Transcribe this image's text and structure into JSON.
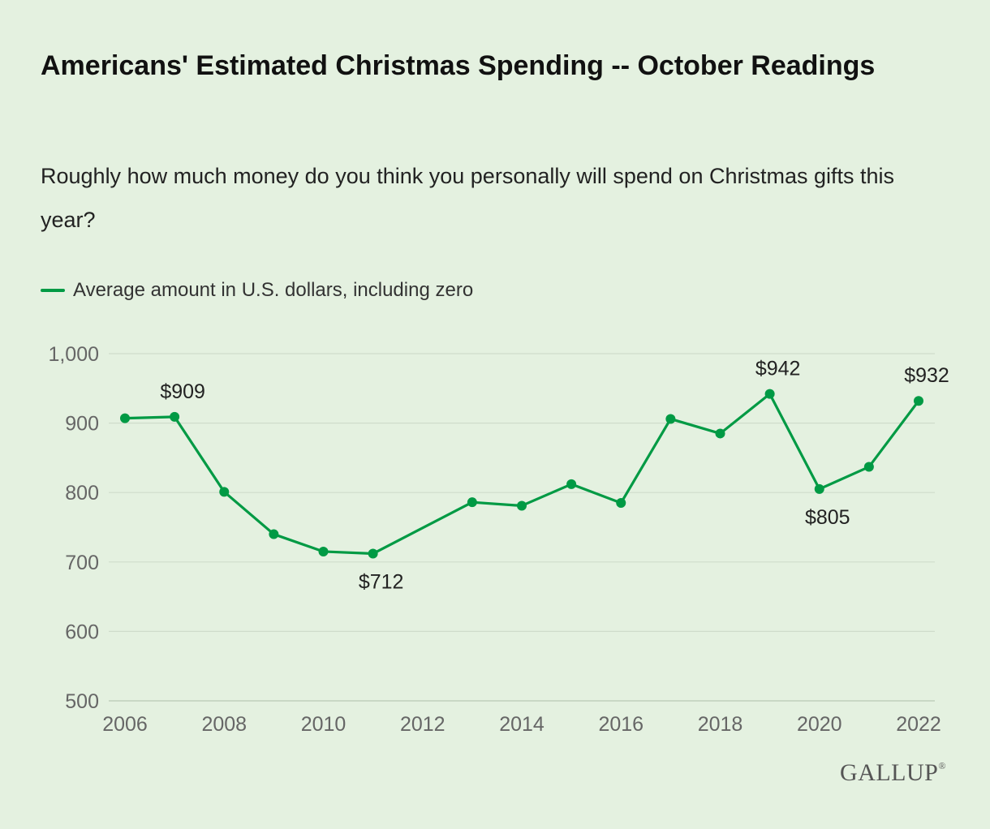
{
  "title": "Americans' Estimated Christmas Spending -- October Readings",
  "subtitle": "Roughly how much money do you think you personally will spend on Christmas gifts this year?",
  "legend": {
    "label": "Average amount in U.S. dollars, including zero"
  },
  "brand": {
    "name": "GALLUP",
    "mark": "®"
  },
  "colors": {
    "background": "#e4f1e0",
    "series": "#009a44",
    "grid": "#cfdccb"
  },
  "chart_data": {
    "type": "line",
    "title": "Americans' Estimated Christmas Spending -- October Readings",
    "subtitle": "Roughly how much money do you think you personally will spend on Christmas gifts this year?",
    "xlabel": "",
    "ylabel": "",
    "xlim": [
      2006,
      2022
    ],
    "ylim": [
      500,
      1000
    ],
    "x_ticks": [
      2006,
      2008,
      2010,
      2012,
      2014,
      2016,
      2018,
      2020,
      2022
    ],
    "y_ticks": [
      500,
      600,
      700,
      800,
      900,
      1000
    ],
    "y_tick_labels": [
      "500",
      "600",
      "700",
      "800",
      "900",
      "1,000"
    ],
    "grid": true,
    "legend_position": "top-left",
    "series": [
      {
        "name": "Average amount in U.S. dollars, including zero",
        "color": "#009a44",
        "x": [
          2006,
          2007,
          2008,
          2009,
          2010,
          2011,
          2013,
          2014,
          2015,
          2016,
          2017,
          2018,
          2019,
          2020,
          2021,
          2022
        ],
        "values": [
          907,
          909,
          801,
          740,
          715,
          712,
          786,
          781,
          812,
          785,
          906,
          885,
          942,
          805,
          837,
          932
        ]
      }
    ],
    "annotations": [
      {
        "x": 2007,
        "y": 909,
        "text": "$909",
        "position": "above"
      },
      {
        "x": 2011,
        "y": 712,
        "text": "$712",
        "position": "below"
      },
      {
        "x": 2019,
        "y": 942,
        "text": "$942",
        "position": "above"
      },
      {
        "x": 2020,
        "y": 805,
        "text": "$805",
        "position": "below"
      },
      {
        "x": 2022,
        "y": 932,
        "text": "$932",
        "position": "above"
      }
    ]
  }
}
